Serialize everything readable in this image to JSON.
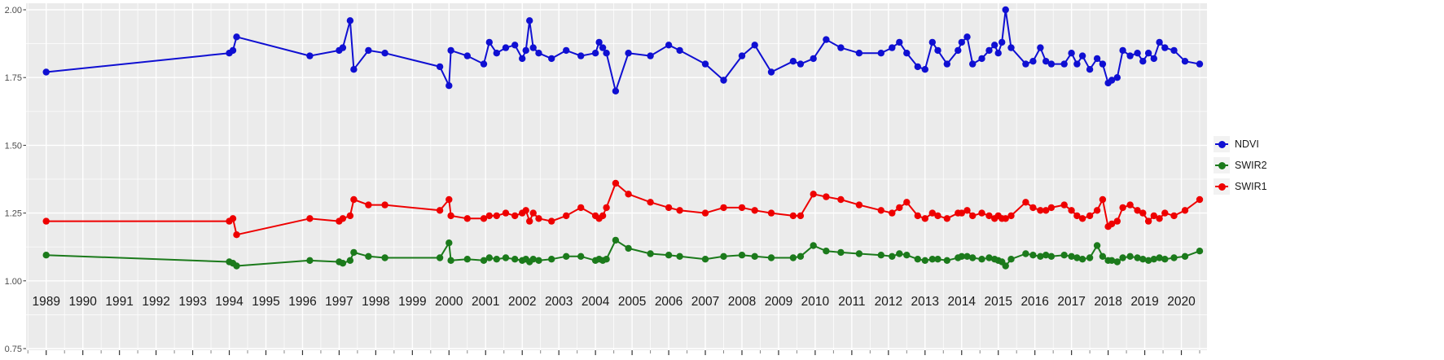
{
  "chart_data": {
    "type": "line",
    "title": "",
    "xlabel": "",
    "ylabel": "",
    "grid": true,
    "legend_position": "right",
    "panel_bg": "#EBEBEB",
    "grid_color": "#FFFFFF",
    "axis_text_color": "#333333",
    "xlim": [
      1988.45,
      2020.7
    ],
    "ylim": [
      0.75,
      2.0
    ],
    "x_ticks": [
      1989,
      1990,
      1991,
      1992,
      1993,
      1994,
      1995,
      1996,
      1997,
      1998,
      1999,
      2000,
      2001,
      2002,
      2003,
      2004,
      2005,
      2006,
      2007,
      2008,
      2009,
      2010,
      2011,
      2012,
      2013,
      2014,
      2015,
      2016,
      2017,
      2018,
      2019,
      2020
    ],
    "x_tick_labels": [
      "1989",
      "1990",
      "1991",
      "1992",
      "1993",
      "1994",
      "1995",
      "1996",
      "1997",
      "1998",
      "1999",
      "2000",
      "2001",
      "2002",
      "2003",
      "2004",
      "2005",
      "2006",
      "2007",
      "2008",
      "2009",
      "2010",
      "2011",
      "2012",
      "2013",
      "2014",
      "2015",
      "2016",
      "2017",
      "2018",
      "2019",
      "2020"
    ],
    "y_ticks": [
      0.75,
      1.0,
      1.25,
      1.5,
      1.75,
      2.0
    ],
    "y_tick_labels": [
      "0.75",
      "1.00",
      "1.25",
      "1.50",
      "1.75",
      "2.00"
    ],
    "y_minor_ticks": [
      0.875,
      1.125,
      1.375,
      1.625,
      1.875
    ],
    "x": [
      1989.0,
      1994.0,
      1994.1,
      1994.2,
      1996.2,
      1997.0,
      1997.1,
      1997.3,
      1997.4,
      1997.8,
      1998.25,
      1999.75,
      2000.0,
      2000.05,
      2000.5,
      2000.95,
      2001.1,
      2001.3,
      2001.55,
      2001.8,
      2002.0,
      2002.1,
      2002.2,
      2002.3,
      2002.45,
      2002.8,
      2003.2,
      2003.6,
      2004.0,
      2004.1,
      2004.2,
      2004.3,
      2004.55,
      2004.9,
      2005.5,
      2006.0,
      2006.3,
      2007.0,
      2007.5,
      2008.0,
      2008.35,
      2008.8,
      2009.4,
      2009.6,
      2009.95,
      2010.3,
      2010.7,
      2011.2,
      2011.8,
      2012.1,
      2012.3,
      2012.5,
      2012.8,
      2013.0,
      2013.2,
      2013.35,
      2013.6,
      2013.9,
      2014.0,
      2014.15,
      2014.3,
      2014.55,
      2014.75,
      2014.9,
      2015.0,
      2015.1,
      2015.2,
      2015.35,
      2015.75,
      2015.95,
      2016.15,
      2016.3,
      2016.45,
      2016.8,
      2017.0,
      2017.15,
      2017.3,
      2017.5,
      2017.7,
      2017.85,
      2018.0,
      2018.1,
      2018.25,
      2018.4,
      2018.6,
      2018.8,
      2018.95,
      2019.1,
      2019.25,
      2019.4,
      2019.55,
      2019.8,
      2020.1,
      2020.5
    ],
    "series": [
      {
        "name": "NDVI",
        "color": "#0F0FD2",
        "values": [
          1.77,
          1.84,
          1.85,
          1.9,
          1.83,
          1.85,
          1.86,
          1.96,
          1.78,
          1.85,
          1.84,
          1.79,
          1.72,
          1.85,
          1.83,
          1.8,
          1.88,
          1.84,
          1.86,
          1.87,
          1.82,
          1.85,
          1.96,
          1.86,
          1.84,
          1.82,
          1.85,
          1.83,
          1.84,
          1.88,
          1.86,
          1.84,
          1.7,
          1.84,
          1.83,
          1.87,
          1.85,
          1.8,
          1.74,
          1.83,
          1.87,
          1.77,
          1.81,
          1.8,
          1.82,
          1.89,
          1.86,
          1.84,
          1.84,
          1.86,
          1.88,
          1.84,
          1.79,
          1.78,
          1.88,
          1.85,
          1.8,
          1.85,
          1.88,
          1.9,
          1.8,
          1.82,
          1.85,
          1.87,
          1.84,
          1.88,
          2.0,
          1.86,
          1.8,
          1.81,
          1.86,
          1.81,
          1.8,
          1.8,
          1.84,
          1.8,
          1.83,
          1.78,
          1.82,
          1.8,
          1.73,
          1.74,
          1.75,
          1.85,
          1.83,
          1.84,
          1.81,
          1.84,
          1.82,
          1.88,
          1.86,
          1.85,
          1.81,
          1.8
        ]
      },
      {
        "name": "SWIR2",
        "color": "#1B7A1B",
        "values": [
          1.095,
          1.07,
          1.065,
          1.055,
          1.075,
          1.07,
          1.065,
          1.075,
          1.105,
          1.09,
          1.085,
          1.085,
          1.14,
          1.075,
          1.08,
          1.075,
          1.085,
          1.08,
          1.085,
          1.08,
          1.075,
          1.08,
          1.07,
          1.08,
          1.075,
          1.08,
          1.09,
          1.09,
          1.075,
          1.08,
          1.075,
          1.08,
          1.15,
          1.12,
          1.1,
          1.095,
          1.09,
          1.08,
          1.09,
          1.095,
          1.09,
          1.085,
          1.085,
          1.09,
          1.13,
          1.11,
          1.105,
          1.1,
          1.095,
          1.09,
          1.1,
          1.095,
          1.08,
          1.075,
          1.08,
          1.08,
          1.075,
          1.085,
          1.09,
          1.09,
          1.085,
          1.08,
          1.085,
          1.08,
          1.075,
          1.07,
          1.055,
          1.08,
          1.1,
          1.095,
          1.09,
          1.095,
          1.09,
          1.095,
          1.09,
          1.085,
          1.08,
          1.085,
          1.13,
          1.09,
          1.075,
          1.075,
          1.07,
          1.085,
          1.09,
          1.085,
          1.08,
          1.075,
          1.08,
          1.085,
          1.08,
          1.085,
          1.09,
          1.11
        ]
      },
      {
        "name": "SWIR1",
        "color": "#EE0000",
        "values": [
          1.22,
          1.22,
          1.23,
          1.17,
          1.23,
          1.22,
          1.23,
          1.24,
          1.3,
          1.28,
          1.28,
          1.26,
          1.3,
          1.24,
          1.23,
          1.23,
          1.24,
          1.24,
          1.25,
          1.24,
          1.25,
          1.26,
          1.22,
          1.25,
          1.23,
          1.22,
          1.24,
          1.27,
          1.24,
          1.23,
          1.24,
          1.27,
          1.36,
          1.32,
          1.29,
          1.27,
          1.26,
          1.25,
          1.27,
          1.27,
          1.26,
          1.25,
          1.24,
          1.24,
          1.32,
          1.31,
          1.3,
          1.28,
          1.26,
          1.25,
          1.27,
          1.29,
          1.24,
          1.23,
          1.25,
          1.24,
          1.23,
          1.25,
          1.25,
          1.26,
          1.24,
          1.25,
          1.24,
          1.23,
          1.24,
          1.23,
          1.23,
          1.24,
          1.29,
          1.27,
          1.26,
          1.26,
          1.27,
          1.28,
          1.26,
          1.24,
          1.23,
          1.24,
          1.26,
          1.3,
          1.2,
          1.21,
          1.22,
          1.27,
          1.28,
          1.26,
          1.25,
          1.22,
          1.24,
          1.23,
          1.25,
          1.24,
          1.26,
          1.3
        ]
      }
    ],
    "legend": {
      "entries": [
        "NDVI",
        "SWIR2",
        "SWIR1"
      ]
    }
  }
}
